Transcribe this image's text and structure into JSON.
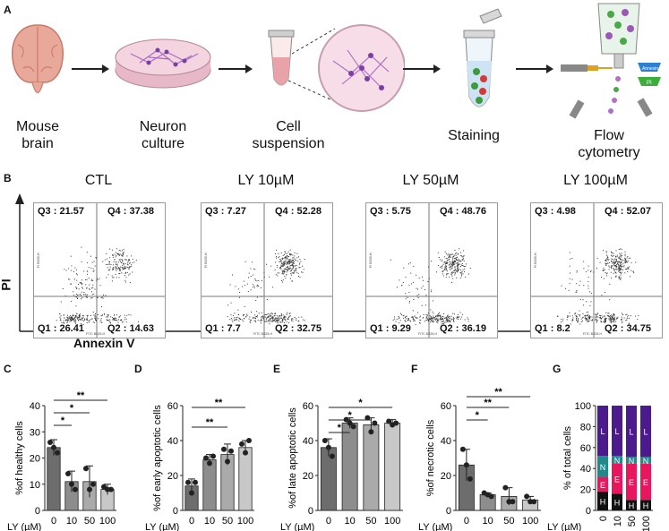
{
  "panels": {
    "a": "A",
    "b": "B",
    "c": "C",
    "d": "D",
    "e": "E",
    "f": "F",
    "g": "G"
  },
  "workflow": {
    "steps": [
      "Mouse\nbrain",
      "Neuron\nculture",
      "Cell\nsuspension",
      "Staining",
      "Flow\ncytometry"
    ],
    "icons": [
      "mouse-brain-icon",
      "culture-dish-icon",
      "tube-icon",
      "staining-tube-icon",
      "flow-cytometer-icon"
    ],
    "cytometer_labels": {
      "annexin": "Annexin V",
      "pi": "PI"
    }
  },
  "flow_plots": {
    "y_axis_label": "PI",
    "x_axis_label": "Annexin V",
    "plots": [
      {
        "title": "CTL",
        "q3": "Q3 : 21.57",
        "q4": "Q4 : 37.38",
        "q1": "Q1 : 26.41",
        "q2": "Q2 : 14.63",
        "xaxis": "FITC BS25-H",
        "yaxis": "PI BS05-H"
      },
      {
        "title": "LY 10µM",
        "q3": "Q3 : 7.27",
        "q4": "Q4 : 52.28",
        "q1": "Q1 : 7.7",
        "q2": "Q2 : 32.75",
        "xaxis": "FITC BS25-H",
        "yaxis": "PI BS05-H"
      },
      {
        "title": "LY 50µM",
        "q3": "Q3 : 5.75",
        "q4": "Q4 : 48.76",
        "q1": "Q1 : 9.29",
        "q2": "Q2 : 36.19",
        "xaxis": "FITC BS25-H",
        "yaxis": "PI BS05-H"
      },
      {
        "title": "LY 100µM",
        "q3": "Q3 : 4.98",
        "q4": "Q4 : 52.07",
        "q1": "Q1 : 8.2",
        "q2": "Q2 : 34.75",
        "xaxis": "FITC BS25-H",
        "yaxis": "PI BS05-H"
      }
    ]
  },
  "chart_data": [
    {
      "type": "bar",
      "id": "C",
      "categories": [
        "0",
        "10",
        "50",
        "100"
      ],
      "values": [
        24,
        11,
        11,
        8
      ],
      "error": [
        3,
        4,
        6,
        2
      ],
      "points": [
        [
          26,
          24,
          22
        ],
        [
          14,
          10,
          8
        ],
        [
          16,
          8,
          10
        ],
        [
          9,
          8,
          8
        ]
      ],
      "ylabel": "%of healthy cells",
      "xlabel": "LY (µM)",
      "ylim": [
        0,
        40
      ],
      "yticks": [
        0,
        10,
        20,
        30,
        40
      ],
      "colors": [
        "#6d6d6d",
        "#8d8d8d",
        "#aaaaaa",
        "#c8c8c8"
      ],
      "sig": [
        {
          "from": 0,
          "to": 1,
          "label": "*"
        },
        {
          "from": 0,
          "to": 2,
          "label": "*"
        },
        {
          "from": 0,
          "to": 3,
          "label": "**"
        }
      ]
    },
    {
      "type": "bar",
      "id": "D",
      "categories": [
        "0",
        "10",
        "50",
        "100"
      ],
      "values": [
        14,
        29,
        32,
        36
      ],
      "error": [
        4,
        3,
        6,
        4
      ],
      "points": [
        [
          16,
          10,
          16
        ],
        [
          30,
          27,
          31
        ],
        [
          35,
          28,
          34
        ],
        [
          38,
          33,
          40
        ]
      ],
      "ylabel": "%of early apoptotic cells",
      "xlabel": "LY (µM)",
      "ylim": [
        0,
        60
      ],
      "yticks": [
        0,
        20,
        40,
        60
      ],
      "colors": [
        "#6d6d6d",
        "#8d8d8d",
        "#aaaaaa",
        "#c8c8c8"
      ],
      "sig": [
        {
          "from": 0,
          "to": 2,
          "label": "**"
        },
        {
          "from": 0,
          "to": 3,
          "label": "**"
        }
      ]
    },
    {
      "type": "bar",
      "id": "E",
      "categories": [
        "0",
        "10",
        "50",
        "100"
      ],
      "values": [
        36,
        50,
        49,
        50
      ],
      "error": [
        5,
        3,
        4,
        2
      ],
      "points": [
        [
          40,
          36,
          31
        ],
        [
          52,
          50,
          48
        ],
        [
          53,
          45,
          50
        ],
        [
          51,
          49,
          50
        ]
      ],
      "ylabel": "%of late apoptotic cells",
      "xlabel": "LY (µM)",
      "ylim": [
        0,
        60
      ],
      "yticks": [
        0,
        20,
        40,
        60
      ],
      "colors": [
        "#6d6d6d",
        "#8d8d8d",
        "#aaaaaa",
        "#c8c8c8"
      ],
      "sig": [
        {
          "from": 0,
          "to": 1,
          "label": "*"
        },
        {
          "from": 0,
          "to": 2,
          "label": "*"
        },
        {
          "from": 0,
          "to": 3,
          "label": "*"
        }
      ]
    },
    {
      "type": "bar",
      "id": "F",
      "categories": [
        "0",
        "10",
        "50",
        "100"
      ],
      "values": [
        26,
        9,
        8,
        6
      ],
      "error": [
        9,
        1,
        5,
        2
      ],
      "points": [
        [
          35,
          26,
          18
        ],
        [
          10,
          9,
          8
        ],
        [
          13,
          5,
          5
        ],
        [
          8,
          5,
          5
        ]
      ],
      "ylabel": "%of necrotic cells",
      "xlabel": "LY (µM)",
      "ylim": [
        0,
        60
      ],
      "yticks": [
        0,
        20,
        40,
        60
      ],
      "colors": [
        "#6d6d6d",
        "#8d8d8d",
        "#aaaaaa",
        "#c8c8c8"
      ],
      "sig": [
        {
          "from": 0,
          "to": 1,
          "label": "*"
        },
        {
          "from": 0,
          "to": 2,
          "label": "**"
        },
        {
          "from": 0,
          "to": 3,
          "label": "**"
        }
      ]
    },
    {
      "type": "bar",
      "id": "G",
      "stacked": true,
      "categories": [
        "0",
        "10",
        "50",
        "100"
      ],
      "ylabel": "% of total cells",
      "xlabel": "LY (µM)",
      "ylim": [
        0,
        100
      ],
      "yticks": [
        0,
        20,
        40,
        60,
        80,
        100
      ],
      "series": [
        {
          "name": "H",
          "values": [
            18,
            16,
            10,
            10
          ],
          "color": "#111111"
        },
        {
          "name": "E",
          "values": [
            14,
            29,
            35,
            35
          ],
          "color": "#e8175d"
        },
        {
          "name": "N",
          "values": [
            20,
            7,
            6,
            6
          ],
          "color": "#1e8a8c"
        },
        {
          "name": "L",
          "values": [
            48,
            48,
            49,
            49
          ],
          "color": "#4b1a8c"
        }
      ]
    }
  ]
}
